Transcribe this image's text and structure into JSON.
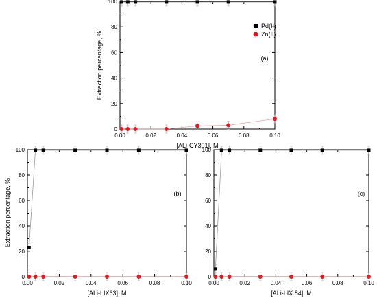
{
  "chart_data": [
    {
      "type": "scatter",
      "panel_label": "(a)",
      "xlabel": "[ALi-CY301], M",
      "ylabel": "Extraction percentage, %",
      "xlim": [
        0,
        0.1
      ],
      "ylim": [
        0,
        100
      ],
      "x_ticks": [
        "0.00",
        "0.02",
        "0.04",
        "0.06",
        "0.08",
        "0.10"
      ],
      "y_ticks": [
        "0",
        "20",
        "40",
        "60",
        "80",
        "100"
      ],
      "legend": {
        "placement": "top-right"
      },
      "grid": false,
      "series": [
        {
          "name": "Pd(II)",
          "marker": "square",
          "color": "#000000",
          "x": [
            0.001,
            0.005,
            0.01,
            0.03,
            0.05,
            0.07,
            0.1
          ],
          "y": [
            99.5,
            99.5,
            99.5,
            99.5,
            99.5,
            99.5,
            99.5
          ]
        },
        {
          "name": "Zn(II)",
          "marker": "circle",
          "color": "#e8191c",
          "x": [
            0.001,
            0.005,
            0.01,
            0.03,
            0.05,
            0.07,
            0.1
          ],
          "y": [
            0,
            0,
            0,
            0,
            2.5,
            3,
            8
          ]
        }
      ]
    },
    {
      "type": "scatter",
      "panel_label": "(b)",
      "xlabel": "[ALi-LIX63], M",
      "ylabel": "Extraction percentage, %",
      "xlim": [
        0,
        0.1
      ],
      "ylim": [
        0,
        100
      ],
      "x_ticks": [
        "0.00",
        "0.02",
        "0.04",
        "0.06",
        "0.08",
        "0.10"
      ],
      "y_ticks": [
        "0",
        "20",
        "40",
        "60",
        "80",
        "100"
      ],
      "grid": false,
      "series": [
        {
          "marker": "square",
          "color": "#000000",
          "x": [
            0.001,
            0.005,
            0.01,
            0.03,
            0.05,
            0.07,
            0.1
          ],
          "y": [
            23,
            99.5,
            99.5,
            99.5,
            99.5,
            99.5,
            99.5
          ]
        },
        {
          "marker": "circle",
          "color": "#e8191c",
          "x": [
            0.001,
            0.005,
            0.01,
            0.03,
            0.05,
            0.07,
            0.1
          ],
          "y": [
            0,
            0,
            0,
            0,
            0,
            0,
            0
          ]
        }
      ]
    },
    {
      "type": "scatter",
      "panel_label": "(c)",
      "xlabel": "[ALi-LIX 84], M",
      "ylabel": "",
      "xlim": [
        0,
        0.1
      ],
      "ylim": [
        0,
        100
      ],
      "x_ticks": [
        "0.00",
        "0.02",
        "0.04",
        "0.06",
        "0.08",
        "0.10"
      ],
      "y_ticks": [
        "0",
        "20",
        "40",
        "60",
        "80",
        "100"
      ],
      "grid": false,
      "series": [
        {
          "marker": "square",
          "color": "#000000",
          "x": [
            0.001,
            0.005,
            0.01,
            0.03,
            0.05,
            0.07,
            0.1
          ],
          "y": [
            6,
            99.5,
            99.5,
            99.5,
            99.5,
            99.5,
            99.5
          ]
        },
        {
          "marker": "circle",
          "color": "#e8191c",
          "x": [
            0.001,
            0.005,
            0.01,
            0.03,
            0.05,
            0.07,
            0.1
          ],
          "y": [
            0,
            0,
            0,
            0,
            0,
            0,
            0
          ]
        }
      ]
    }
  ]
}
